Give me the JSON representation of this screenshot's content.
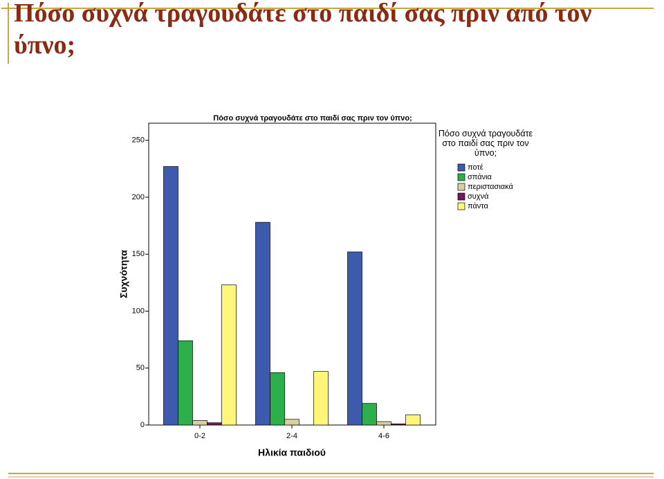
{
  "slide_title": "Πόσο συχνά τραγουδάτε στο παιδί σας πριν από τον ύπνο;",
  "chart_data": {
    "type": "bar",
    "title": "Πόσο συχνά τραγουδάτε στο παιδί σας πριν τον ύπνο;",
    "x_label": "Ηλικία παιδιού",
    "y_label": "Συχνότητα",
    "legend_title": "Πόσο συχνά τραγουδάτε στο παιδί σας πριν τον ύπνο;",
    "categories": [
      "0-2",
      "2-4",
      "4-6"
    ],
    "series": [
      {
        "name": "ποτέ",
        "color": "#3d5aad",
        "values": [
          227,
          178,
          152
        ]
      },
      {
        "name": "σπάνια",
        "color": "#2db04b",
        "values": [
          74,
          46,
          19
        ]
      },
      {
        "name": "περιστασιακά",
        "color": "#d8d0a0",
        "values": [
          4,
          5,
          3
        ]
      },
      {
        "name": "συχνά",
        "color": "#6b1d5e",
        "values": [
          2,
          0,
          1
        ]
      },
      {
        "name": "πάντα",
        "color": "#fff67a",
        "values": [
          123,
          47,
          9
        ]
      }
    ],
    "ylim": [
      0,
      265
    ],
    "yticks": [
      0,
      50,
      100,
      150,
      200,
      250
    ]
  }
}
